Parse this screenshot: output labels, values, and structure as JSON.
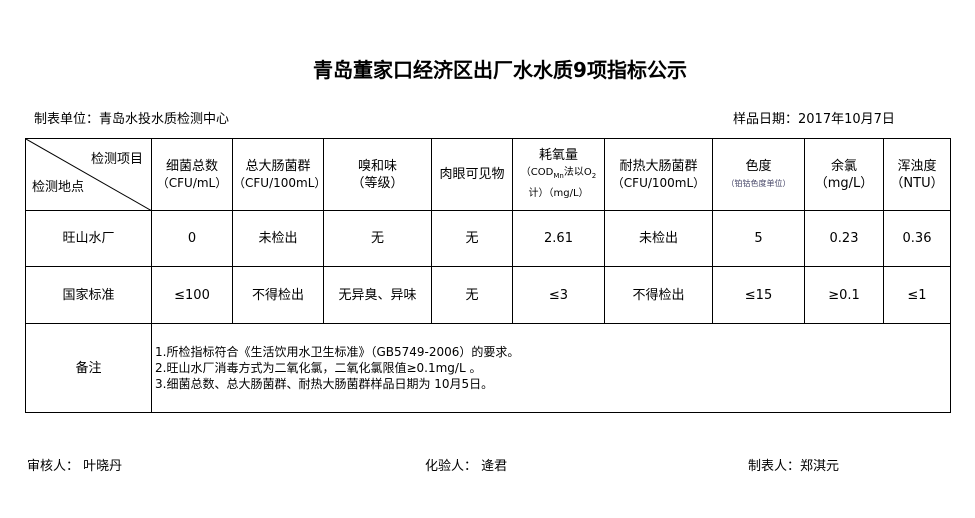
{
  "title": "青岛董家口经济区出厂水水质9项指标公示",
  "unit_label": "制表单位：青岛水投水质检测中心",
  "sample_date": "样品日期：2017年10月7日",
  "table": {
    "corner_top": "检测项目",
    "corner_bottom": "检测地点",
    "headers": [
      {
        "name": "细菌总数",
        "unit": "（CFU/mL）"
      },
      {
        "name": "总大肠菌群",
        "unit": "（CFU/100mL）"
      },
      {
        "name": "嗅和味",
        "unit": "（等级）"
      },
      {
        "name": "肉眼可见物",
        "unit": ""
      },
      {
        "name": "耗氧量",
        "unit_a": "（COD",
        "unit_sub": "Mn",
        "unit_b": "法以O",
        "unit_sub2": "2",
        "unit_c": "计）（mg/L）"
      },
      {
        "name": "耐热大肠菌群",
        "unit": "（CFU/100mL）"
      },
      {
        "name": "色度",
        "unit": "（铂钴色度单位）"
      },
      {
        "name": "余氯",
        "unit": "（mg/L）"
      },
      {
        "name": "浑浊度",
        "unit": "（NTU）"
      }
    ],
    "rows": [
      {
        "label": "旺山水厂",
        "values": [
          "0",
          "未检出",
          "无",
          "无",
          "2.61",
          "未检出",
          "5",
          "0.23",
          "0.36"
        ]
      },
      {
        "label": "国家标准",
        "values": [
          "≤100",
          "不得检出",
          "无异臭、异味",
          "无",
          "≤3",
          "不得检出",
          "≤15",
          "≥0.1",
          "≤1"
        ]
      }
    ],
    "notes_label": "备注",
    "notes": [
      "1.所检指标符合《生活饮用水卫生标准》（GB5749-2006）的要求。",
      "2.旺山水厂消毒方式为二氧化氯，二氧化氯限值≥0.1mg/L 。",
      "3.细菌总数、总大肠菌群、耐热大肠菌群样品日期为 10月5日。"
    ]
  },
  "footer": {
    "reviewer": "审核人：  叶晓丹",
    "tester": "化验人：  逄君",
    "maker": "制表人：郑淇元"
  }
}
